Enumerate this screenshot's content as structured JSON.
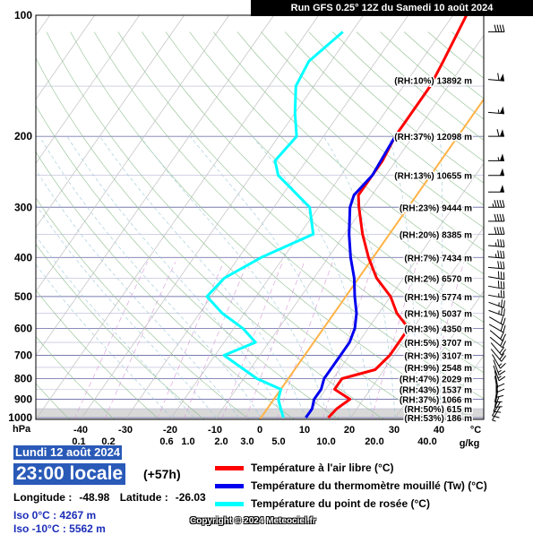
{
  "header": {
    "run_title": "Run GFS 0.25° 12Z du Samedi 10 août 2024"
  },
  "chart_data": {
    "type": "line",
    "diagram": "skew-T log-P",
    "pressure_unit": "hPa",
    "temperature_unit": "°C",
    "mixing_ratio_unit": "g/kg",
    "y_ticks": [
      100,
      200,
      300,
      400,
      500,
      600,
      700,
      800,
      900,
      1000
    ],
    "x_ticks": [
      "-40",
      "-30",
      "-20",
      "-10",
      "0",
      "10",
      "20",
      "30",
      "40"
    ],
    "mixing_ratio_ticks": [
      "0.1",
      "0.2",
      "0.6",
      "1.0",
      "2.0",
      "3.0",
      "5.0",
      "10.0",
      "20.0",
      "40.0"
    ],
    "ylim": [
      1010,
      100
    ],
    "series": [
      {
        "name": "Température à l'air libre (°C)",
        "color": "#ff0000",
        "points": [
          [
            1000,
            15
          ],
          [
            950,
            15.5
          ],
          [
            900,
            17
          ],
          [
            850,
            12
          ],
          [
            800,
            12
          ],
          [
            760,
            18
          ],
          [
            700,
            19
          ],
          [
            650,
            19
          ],
          [
            600,
            19
          ],
          [
            550,
            14
          ],
          [
            500,
            10
          ],
          [
            450,
            4
          ],
          [
            400,
            -1
          ],
          [
            350,
            -6
          ],
          [
            300,
            -11
          ],
          [
            280,
            -13
          ],
          [
            250,
            -13
          ],
          [
            230,
            -13
          ],
          [
            200,
            -14
          ],
          [
            180,
            -14
          ],
          [
            150,
            -14
          ],
          [
            130,
            -15
          ],
          [
            100,
            -17
          ]
        ]
      },
      {
        "name": "Température du thermomètre mouillé (Tw) (°C)",
        "color": "#0000ee",
        "points": [
          [
            1000,
            10
          ],
          [
            950,
            10
          ],
          [
            900,
            9
          ],
          [
            850,
            9
          ],
          [
            800,
            8
          ],
          [
            750,
            8
          ],
          [
            700,
            8
          ],
          [
            650,
            8
          ],
          [
            600,
            7
          ],
          [
            550,
            5
          ],
          [
            500,
            2
          ],
          [
            450,
            -1
          ],
          [
            400,
            -5
          ],
          [
            350,
            -9
          ],
          [
            300,
            -13
          ],
          [
            280,
            -14
          ],
          [
            250,
            -13
          ],
          [
            200,
            -14
          ]
        ]
      },
      {
        "name": "Température du point de rosée (°C)",
        "color": "#00ffff",
        "points": [
          [
            1000,
            5
          ],
          [
            950,
            3
          ],
          [
            900,
            1
          ],
          [
            850,
            0
          ],
          [
            800,
            -7
          ],
          [
            700,
            -18
          ],
          [
            650,
            -13
          ],
          [
            600,
            -18
          ],
          [
            550,
            -25
          ],
          [
            500,
            -31
          ],
          [
            450,
            -30
          ],
          [
            400,
            -25
          ],
          [
            350,
            -17
          ],
          [
            300,
            -22
          ],
          [
            250,
            -34
          ],
          [
            230,
            -37
          ],
          [
            200,
            -36
          ],
          [
            175,
            -40
          ],
          [
            150,
            -44
          ],
          [
            130,
            -45
          ],
          [
            110,
            -42
          ]
        ]
      }
    ],
    "freezing_level_temp": 0,
    "levels": [
      {
        "p": 145,
        "label": "(RH:10%) 13892 m"
      },
      {
        "p": 200,
        "label": "(RH:37%) 12098 m"
      },
      {
        "p": 250,
        "label": "(RH:13%) 10655 m"
      },
      {
        "p": 300,
        "label": "(RH:23%) 9444 m"
      },
      {
        "p": 350,
        "label": "(RH:20%) 8385 m"
      },
      {
        "p": 400,
        "label": "(RH:7%) 7434 m"
      },
      {
        "p": 450,
        "label": "(RH:2%) 6570 m"
      },
      {
        "p": 500,
        "label": "(RH:1%) 5774 m"
      },
      {
        "p": 550,
        "label": "(RH:1%) 5037 m"
      },
      {
        "p": 600,
        "label": "(RH:3%) 4350 m"
      },
      {
        "p": 650,
        "label": "(RH:5%) 3707 m"
      },
      {
        "p": 700,
        "label": "(RH:3%) 3107 m"
      },
      {
        "p": 750,
        "label": "(RH:9%) 2548 m"
      },
      {
        "p": 800,
        "label": "(RH:47%) 2029 m"
      },
      {
        "p": 850,
        "label": "(RH:43%) 1537 m"
      },
      {
        "p": 900,
        "label": "(RH:37%) 1066 m"
      },
      {
        "p": 950,
        "label": "(RH:50%) 615 m"
      },
      {
        "p": 1000,
        "label": "(RH:53%) 186 m"
      }
    ],
    "wind_barbs": [
      {
        "p": 110,
        "dir": 270,
        "speed": 40
      },
      {
        "p": 145,
        "dir": 275,
        "speed": 60
      },
      {
        "p": 175,
        "dir": 275,
        "speed": 55
      },
      {
        "p": 200,
        "dir": 270,
        "speed": 60
      },
      {
        "p": 230,
        "dir": 270,
        "speed": 55
      },
      {
        "p": 250,
        "dir": 270,
        "speed": 50
      },
      {
        "p": 275,
        "dir": 270,
        "speed": 50
      },
      {
        "p": 300,
        "dir": 270,
        "speed": 45
      },
      {
        "p": 325,
        "dir": 270,
        "speed": 40
      },
      {
        "p": 350,
        "dir": 270,
        "speed": 40
      },
      {
        "p": 375,
        "dir": 275,
        "speed": 35
      },
      {
        "p": 400,
        "dir": 275,
        "speed": 35
      },
      {
        "p": 425,
        "dir": 275,
        "speed": 30
      },
      {
        "p": 450,
        "dir": 280,
        "speed": 30
      },
      {
        "p": 475,
        "dir": 280,
        "speed": 30
      },
      {
        "p": 500,
        "dir": 280,
        "speed": 25
      },
      {
        "p": 525,
        "dir": 290,
        "speed": 25
      },
      {
        "p": 550,
        "dir": 290,
        "speed": 25
      },
      {
        "p": 575,
        "dir": 300,
        "speed": 20
      },
      {
        "p": 600,
        "dir": 300,
        "speed": 20
      },
      {
        "p": 625,
        "dir": 310,
        "speed": 20
      },
      {
        "p": 650,
        "dir": 310,
        "speed": 20
      },
      {
        "p": 675,
        "dir": 320,
        "speed": 20
      },
      {
        "p": 700,
        "dir": 320,
        "speed": 20
      },
      {
        "p": 725,
        "dir": 330,
        "speed": 15
      },
      {
        "p": 750,
        "dir": 340,
        "speed": 15
      },
      {
        "p": 775,
        "dir": 340,
        "speed": 15
      },
      {
        "p": 800,
        "dir": 350,
        "speed": 10
      },
      {
        "p": 825,
        "dir": 350,
        "speed": 10
      },
      {
        "p": 850,
        "dir": 0,
        "speed": 10
      },
      {
        "p": 875,
        "dir": 10,
        "speed": 10
      },
      {
        "p": 900,
        "dir": 10,
        "speed": 10
      },
      {
        "p": 925,
        "dir": 20,
        "speed": 10
      },
      {
        "p": 950,
        "dir": 30,
        "speed": 10
      },
      {
        "p": 975,
        "dir": 30,
        "speed": 5
      }
    ]
  },
  "footer": {
    "date": "Lundi 12 août 2024",
    "time": "23:00 locale",
    "offset": "(+57h)",
    "longitude_label": "Longitude :",
    "longitude": "-48.98",
    "latitude_label": "Latitude :",
    "latitude": "-26.03",
    "iso0": "Iso 0°C : 4267 m",
    "iso_m10": "Iso -10°C : 5562 m",
    "legend": [
      {
        "label": "Température à l'air libre (°C)",
        "color": "#ff0000"
      },
      {
        "label": "Température du thermomètre mouillé (Tw) (°C)",
        "color": "#0000ee"
      },
      {
        "label": "Température du point de rosée (°C)",
        "color": "#00ffff"
      }
    ],
    "copyright": "Copyright © 2024 Meteociel.fr"
  }
}
